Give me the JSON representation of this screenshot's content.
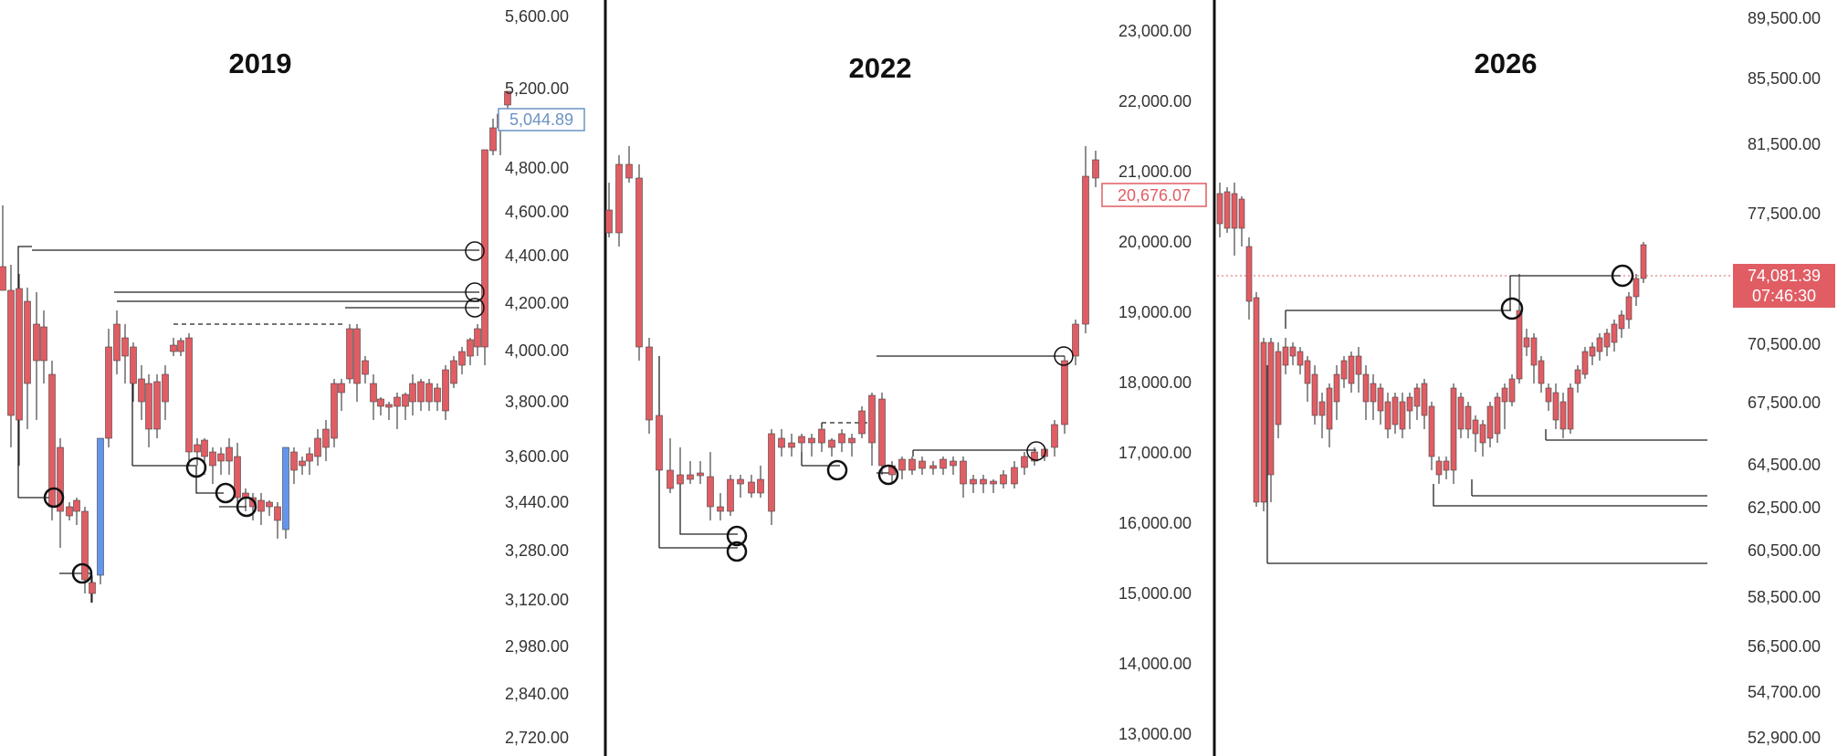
{
  "chart_data": [
    {
      "type": "candlestick",
      "title": "2019",
      "axis_side": "right",
      "y_ticks": [
        "5,600.00",
        "5,200.00",
        "4,800.00",
        "4,600.00",
        "4,400.00",
        "4,200.00",
        "4,000.00",
        "3,800.00",
        "3,600.00",
        "3,440.00",
        "3,280.00",
        "3,120.00",
        "2,980.00",
        "2,840.00",
        "2,720.00"
      ],
      "last_price": {
        "label": "5,044.89",
        "color": "#6b93c4",
        "style": "outline"
      },
      "colors": {
        "up": "#6495ed",
        "down": "#e05d64"
      },
      "annotations": "horizontal level lines with circled retest points"
    },
    {
      "type": "candlestick",
      "title": "2022",
      "axis_side": "right",
      "y_ticks": [
        "23,000.00",
        "22,000.00",
        "21,000.00",
        "20,000.00",
        "19,000.00",
        "18,000.00",
        "17,000.00",
        "16,000.00",
        "15,000.00",
        "14,000.00",
        "13,000.00"
      ],
      "last_price": {
        "label": "20,676.07",
        "color": "#e05d64",
        "style": "outline"
      },
      "colors": {
        "up": "#6495ed",
        "down": "#e05d64"
      },
      "annotations": "horizontal level lines with circled retest points, one dashed range box"
    },
    {
      "type": "candlestick",
      "title": "2026",
      "axis_side": "right",
      "y_ticks": [
        "89,500.00",
        "85,500.00",
        "81,500.00",
        "77,500.00",
        "70,500.00",
        "67,500.00",
        "64,500.00",
        "62,500.00",
        "60,500.00",
        "58,500.00",
        "56,500.00",
        "54,700.00",
        "52,900.00"
      ],
      "last_price": {
        "label": "74,081.39",
        "sublabel": "07:46:30",
        "color": "#e05d64",
        "style": "filled"
      },
      "colors": {
        "up": "#6495ed",
        "down": "#e05d64"
      },
      "annotations": "horizontal level lines, circled breakout points, dotted current price line"
    }
  ]
}
